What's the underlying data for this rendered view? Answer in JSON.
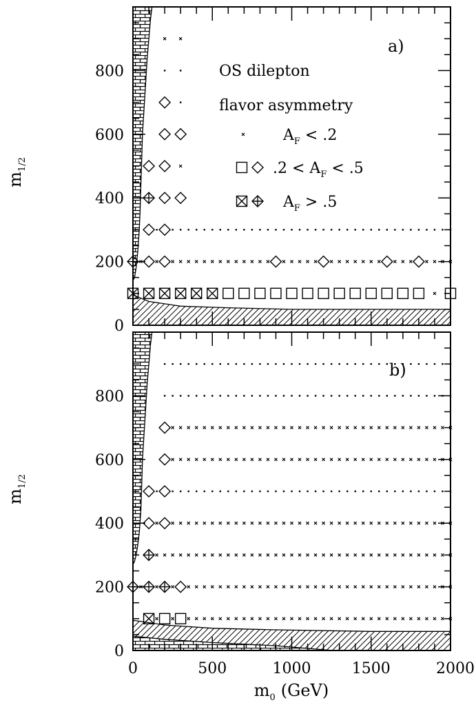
{
  "chart_data": {
    "type": "scatter",
    "xlabel": "m",
    "xlabel_sub": "0",
    "xlabel_unit": "(GeV)",
    "ylabel": "m",
    "ylabel_sub": "1/2",
    "xlim": [
      0,
      2000
    ],
    "ylim": [
      0,
      1000
    ],
    "x_ticks": [
      "0",
      "500",
      "1000",
      "1500",
      "2000"
    ],
    "x_tick_values": [
      0,
      500,
      1000,
      1500,
      2000
    ],
    "y_ticks": [
      "0",
      "200",
      "400",
      "600",
      "800"
    ],
    "y_tick_values": [
      0,
      200,
      400,
      600,
      800
    ],
    "legend": {
      "title_line1": "OS dilepton",
      "title_line2": "flavor asymmetry",
      "entries": [
        {
          "symbols": [
            "small-x"
          ],
          "prefix": "",
          "var": "A",
          "sub": "F",
          "rest": " < .2"
        },
        {
          "symbols": [
            "square",
            "diamond"
          ],
          "prefix": ".2 < ",
          "var": "A",
          "sub": "F",
          "rest": " < .5"
        },
        {
          "symbols": [
            "square-x",
            "diamond-plus"
          ],
          "prefix": "",
          "var": "A",
          "sub": "F",
          "rest": " > .5"
        }
      ]
    },
    "panels": [
      {
        "label": "a)",
        "rows": [
          {
            "y": 900,
            "x_start": 200,
            "x_end": 300,
            "default": "x",
            "overrides": {}
          },
          {
            "y": 800,
            "x_start": 200,
            "x_end": 300,
            "default": "dot",
            "overrides": {}
          },
          {
            "y": 700,
            "x_start": 200,
            "x_end": 300,
            "default": "dot",
            "overrides": {
              "200": "diamond"
            }
          },
          {
            "y": 600,
            "x_start": 200,
            "x_end": 300,
            "default": "dot",
            "overrides": {
              "200": "diamond",
              "300": "diamond"
            }
          },
          {
            "y": 500,
            "x_start": 100,
            "x_end": 300,
            "default": "x",
            "overrides": {
              "100": "diamond",
              "200": "diamond"
            }
          },
          {
            "y": 400,
            "x_start": 100,
            "x_end": 300,
            "default": "dot",
            "overrides": {
              "100": "diamond-plus",
              "200": "diamond",
              "300": "diamond"
            }
          },
          {
            "y": 300,
            "x_start": 100,
            "x_end": 2000,
            "default": "dot",
            "overrides": {
              "100": "diamond",
              "200": "diamond"
            }
          },
          {
            "y": 200,
            "x_start": 0,
            "x_end": 2000,
            "default": "x",
            "overrides": {
              "0": "diamond-plus",
              "100": "diamond",
              "200": "diamond",
              "900": "diamond",
              "1200": "diamond",
              "1600": "diamond",
              "1800": "diamond"
            }
          },
          {
            "y": 100,
            "x_start": 0,
            "x_end": 2000,
            "default": "square",
            "overrides": {
              "0": "square-x",
              "100": "square-x",
              "200": "square-x",
              "300": "square-x",
              "400": "square-x",
              "500": "square-x",
              "1900": "x"
            }
          }
        ],
        "excluded_brick": [
          [
            0,
            1000
          ],
          [
            120,
            1000
          ],
          [
            110,
            960
          ],
          [
            100,
            900
          ],
          [
            90,
            840
          ],
          [
            80,
            760
          ],
          [
            70,
            680
          ],
          [
            60,
            600
          ],
          [
            55,
            520
          ],
          [
            50,
            440
          ],
          [
            45,
            360
          ],
          [
            40,
            300
          ],
          [
            30,
            230
          ],
          [
            20,
            180
          ],
          [
            10,
            150
          ],
          [
            0,
            140
          ]
        ],
        "excluded_hatch": [
          [
            0,
            95
          ],
          [
            100,
            75
          ],
          [
            300,
            60
          ],
          [
            600,
            55
          ],
          [
            1000,
            50
          ],
          [
            1500,
            50
          ],
          [
            2000,
            50
          ],
          [
            2000,
            0
          ],
          [
            0,
            0
          ]
        ]
      },
      {
        "label": "b)",
        "rows": [
          {
            "y": 900,
            "x_start": 200,
            "x_end": 2000,
            "default": "dot",
            "overrides": {}
          },
          {
            "y": 800,
            "x_start": 200,
            "x_end": 2000,
            "default": "dot",
            "overrides": {}
          },
          {
            "y": 700,
            "x_start": 200,
            "x_end": 2000,
            "default": "x",
            "overrides": {
              "200": "diamond"
            }
          },
          {
            "y": 600,
            "x_start": 200,
            "x_end": 2000,
            "default": "x",
            "overrides": {
              "200": "diamond"
            }
          },
          {
            "y": 500,
            "x_start": 100,
            "x_end": 2000,
            "default": "dot",
            "overrides": {
              "100": "diamond",
              "200": "diamond"
            }
          },
          {
            "y": 400,
            "x_start": 100,
            "x_end": 2000,
            "default": "x",
            "overrides": {
              "100": "diamond",
              "200": "diamond"
            }
          },
          {
            "y": 300,
            "x_start": 100,
            "x_end": 2000,
            "default": "x",
            "overrides": {
              "100": "diamond-plus"
            }
          },
          {
            "y": 200,
            "x_start": 0,
            "x_end": 2000,
            "default": "x",
            "overrides": {
              "0": "diamond-plus",
              "100": "diamond-plus",
              "200": "diamond-plus",
              "300": "diamond"
            }
          },
          {
            "y": 100,
            "x_start": 100,
            "x_end": 2000,
            "default": "x",
            "overrides": {
              "100": "square-x",
              "200": "square",
              "300": "square"
            }
          }
        ],
        "excluded_brick": [
          [
            0,
            1000
          ],
          [
            120,
            1000
          ],
          [
            110,
            960
          ],
          [
            100,
            900
          ],
          [
            90,
            840
          ],
          [
            80,
            760
          ],
          [
            70,
            680
          ],
          [
            60,
            600
          ],
          [
            55,
            520
          ],
          [
            50,
            440
          ],
          [
            40,
            370
          ],
          [
            30,
            330
          ],
          [
            20,
            300
          ],
          [
            10,
            280
          ],
          [
            0,
            270
          ]
        ],
        "excluded_hatch": [
          [
            0,
            95
          ],
          [
            200,
            80
          ],
          [
            500,
            70
          ],
          [
            900,
            65
          ],
          [
            1500,
            60
          ],
          [
            2000,
            60
          ],
          [
            2000,
            0
          ],
          [
            0,
            0
          ]
        ],
        "excluded_brick_low": [
          [
            0,
            45
          ],
          [
            200,
            35
          ],
          [
            500,
            25
          ],
          [
            900,
            15
          ],
          [
            1260,
            0
          ],
          [
            0,
            0
          ]
        ]
      }
    ],
    "grid": false,
    "legend_placement": "top-right of panel a"
  }
}
